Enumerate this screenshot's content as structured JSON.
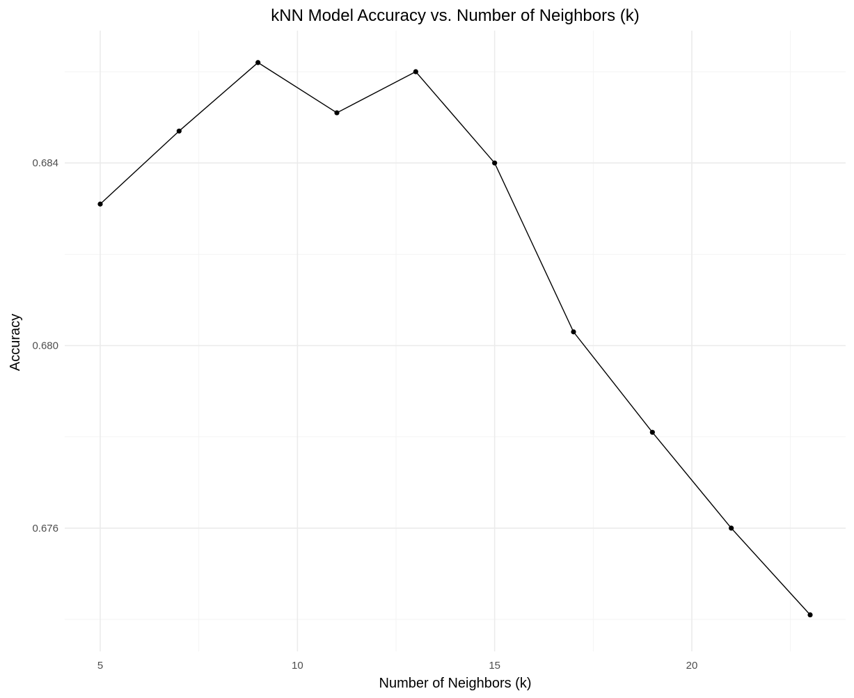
{
  "chart_data": {
    "type": "line",
    "title": "kNN Model Accuracy vs. Number of Neighbors (k)",
    "xlabel": "Number of Neighbors (k)",
    "ylabel": "Accuracy",
    "x": [
      5,
      7,
      9,
      11,
      13,
      15,
      17,
      19,
      21,
      23
    ],
    "series": [
      {
        "values": [
          0.6831,
          0.6847,
          0.6862,
          0.6851,
          0.686,
          0.684,
          0.6803,
          0.6781,
          0.676,
          0.6741
        ]
      }
    ],
    "xticks": [
      5,
      10,
      15,
      20
    ],
    "xtick_labels": [
      "5",
      "10",
      "15",
      "20"
    ],
    "xminor": [
      7.5,
      12.5,
      17.5,
      22.5
    ],
    "yticks": [
      0.676,
      0.68,
      0.684
    ],
    "ytick_labels": [
      "0.676",
      "0.680",
      "0.684"
    ],
    "yminor": [
      0.674,
      0.678,
      0.682,
      0.686
    ],
    "xlim": [
      4.1,
      23.9
    ],
    "ylim": [
      0.6733,
      0.6869
    ],
    "grid": true,
    "line_color": "#000000",
    "point_color": "#000000",
    "grid_color": "#ebebeb"
  }
}
